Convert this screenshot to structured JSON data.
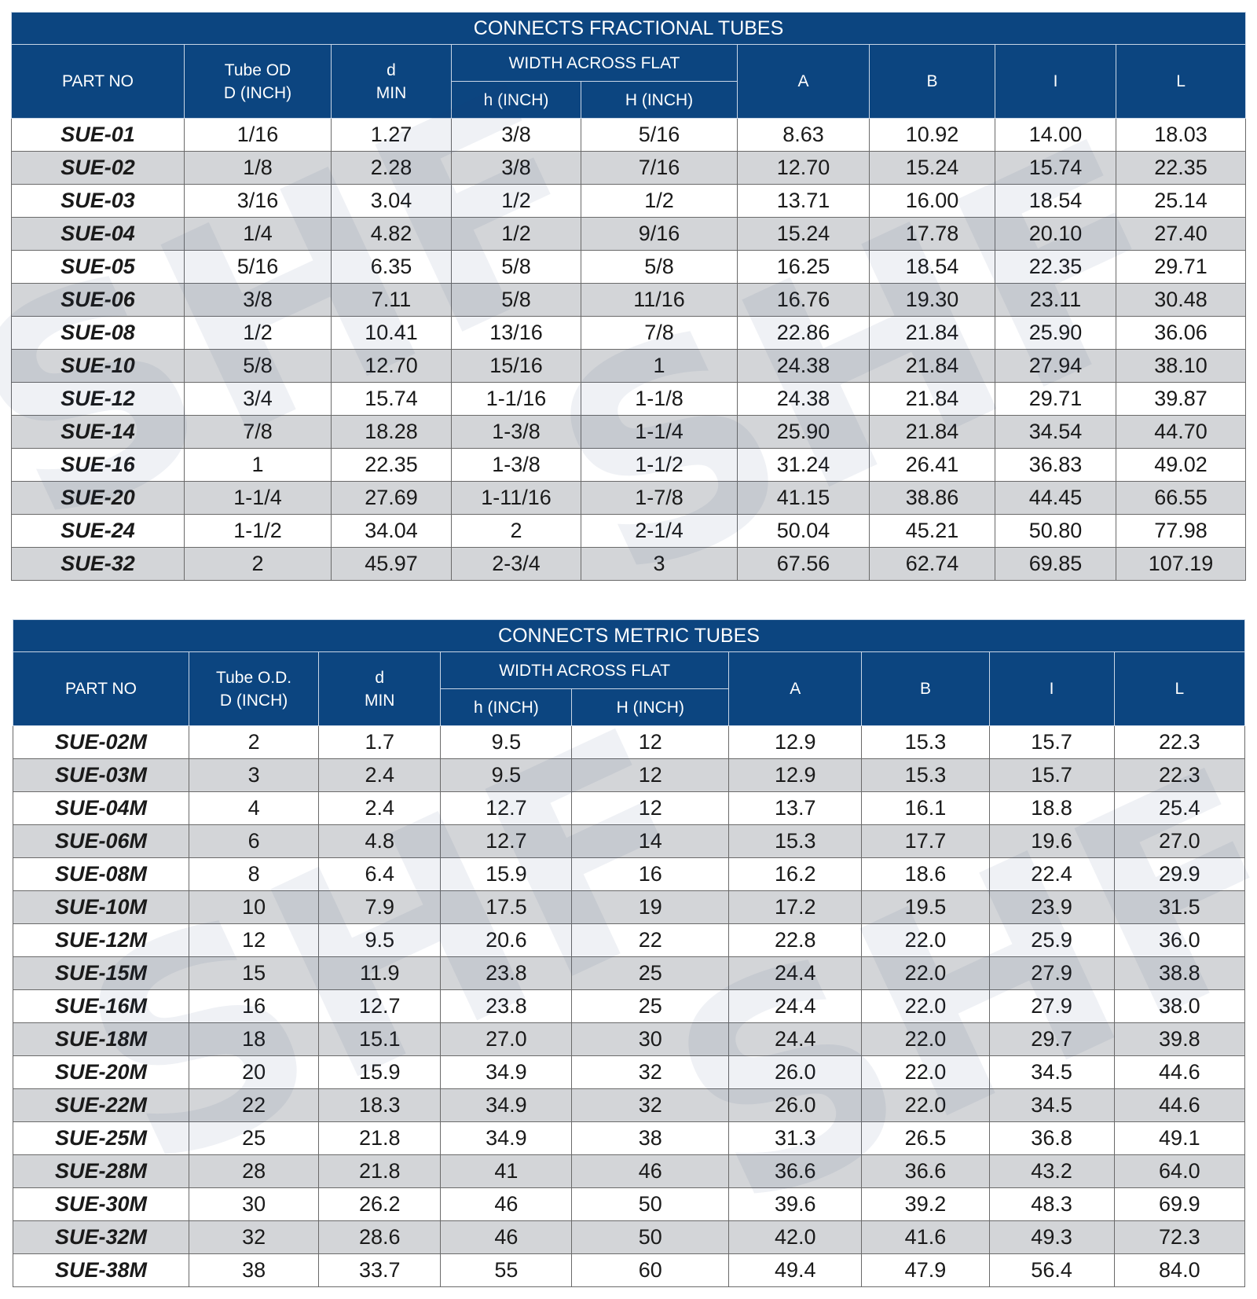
{
  "fractional": {
    "title": "CONNECTS FRACTIONAL TUBES",
    "headers": {
      "part_no": "PART NO",
      "tube_od_1": "Tube OD",
      "tube_od_2": "D (INCH)",
      "d_1": "d",
      "d_2": "MIN",
      "width_across_flat": "WIDTH ACROSS FLAT",
      "h": "h (INCH)",
      "H": "H (INCH)",
      "A": "A",
      "B": "B",
      "I": "I",
      "L": "L"
    },
    "rows": [
      [
        "SUE-01",
        "1/16",
        "1.27",
        "3/8",
        "5/16",
        "8.63",
        "10.92",
        "14.00",
        "18.03"
      ],
      [
        "SUE-02",
        "1/8",
        "2.28",
        "3/8",
        "7/16",
        "12.70",
        "15.24",
        "15.74",
        "22.35"
      ],
      [
        "SUE-03",
        "3/16",
        "3.04",
        "1/2",
        "1/2",
        "13.71",
        "16.00",
        "18.54",
        "25.14"
      ],
      [
        "SUE-04",
        "1/4",
        "4.82",
        "1/2",
        "9/16",
        "15.24",
        "17.78",
        "20.10",
        "27.40"
      ],
      [
        "SUE-05",
        "5/16",
        "6.35",
        "5/8",
        "5/8",
        "16.25",
        "18.54",
        "22.35",
        "29.71"
      ],
      [
        "SUE-06",
        "3/8",
        "7.11",
        "5/8",
        "11/16",
        "16.76",
        "19.30",
        "23.11",
        "30.48"
      ],
      [
        "SUE-08",
        "1/2",
        "10.41",
        "13/16",
        "7/8",
        "22.86",
        "21.84",
        "25.90",
        "36.06"
      ],
      [
        "SUE-10",
        "5/8",
        "12.70",
        "15/16",
        "1",
        "24.38",
        "21.84",
        "27.94",
        "38.10"
      ],
      [
        "SUE-12",
        "3/4",
        "15.74",
        "1-1/16",
        "1-1/8",
        "24.38",
        "21.84",
        "29.71",
        "39.87"
      ],
      [
        "SUE-14",
        "7/8",
        "18.28",
        "1-3/8",
        "1-1/4",
        "25.90",
        "21.84",
        "34.54",
        "44.70"
      ],
      [
        "SUE-16",
        "1",
        "22.35",
        "1-3/8",
        "1-1/2",
        "31.24",
        "26.41",
        "36.83",
        "49.02"
      ],
      [
        "SUE-20",
        "1-1/4",
        "27.69",
        "1-11/16",
        "1-7/8",
        "41.15",
        "38.86",
        "44.45",
        "66.55"
      ],
      [
        "SUE-24",
        "1-1/2",
        "34.04",
        "2",
        "2-1/4",
        "50.04",
        "45.21",
        "50.80",
        "77.98"
      ],
      [
        "SUE-32",
        "2",
        "45.97",
        "2-3/4",
        "3",
        "67.56",
        "62.74",
        "69.85",
        "107.19"
      ]
    ]
  },
  "metric": {
    "title": "CONNECTS METRIC TUBES",
    "headers": {
      "part_no": "PART NO",
      "tube_od_1": "Tube O.D.",
      "tube_od_2": "D (INCH)",
      "d_1": "d",
      "d_2": "MIN",
      "width_across_flat": "WIDTH ACROSS FLAT",
      "h": "h (INCH)",
      "H": "H (INCH)",
      "A": "A",
      "B": "B",
      "I": "I",
      "L": "L"
    },
    "rows": [
      [
        "SUE-02M",
        "2",
        "1.7",
        "9.5",
        "12",
        "12.9",
        "15.3",
        "15.7",
        "22.3"
      ],
      [
        "SUE-03M",
        "3",
        "2.4",
        "9.5",
        "12",
        "12.9",
        "15.3",
        "15.7",
        "22.3"
      ],
      [
        "SUE-04M",
        "4",
        "2.4",
        "12.7",
        "12",
        "13.7",
        "16.1",
        "18.8",
        "25.4"
      ],
      [
        "SUE-06M",
        "6",
        "4.8",
        "12.7",
        "14",
        "15.3",
        "17.7",
        "19.6",
        "27.0"
      ],
      [
        "SUE-08M",
        "8",
        "6.4",
        "15.9",
        "16",
        "16.2",
        "18.6",
        "22.4",
        "29.9"
      ],
      [
        "SUE-10M",
        "10",
        "7.9",
        "17.5",
        "19",
        "17.2",
        "19.5",
        "23.9",
        "31.5"
      ],
      [
        "SUE-12M",
        "12",
        "9.5",
        "20.6",
        "22",
        "22.8",
        "22.0",
        "25.9",
        "36.0"
      ],
      [
        "SUE-15M",
        "15",
        "11.9",
        "23.8",
        "25",
        "24.4",
        "22.0",
        "27.9",
        "38.8"
      ],
      [
        "SUE-16M",
        "16",
        "12.7",
        "23.8",
        "25",
        "24.4",
        "22.0",
        "27.9",
        "38.0"
      ],
      [
        "SUE-18M",
        "18",
        "15.1",
        "27.0",
        "30",
        "24.4",
        "22.0",
        "29.7",
        "39.8"
      ],
      [
        "SUE-20M",
        "20",
        "15.9",
        "34.9",
        "32",
        "26.0",
        "22.0",
        "34.5",
        "44.6"
      ],
      [
        "SUE-22M",
        "22",
        "18.3",
        "34.9",
        "32",
        "26.0",
        "22.0",
        "34.5",
        "44.6"
      ],
      [
        "SUE-25M",
        "25",
        "21.8",
        "34.9",
        "38",
        "31.3",
        "26.5",
        "36.8",
        "49.1"
      ],
      [
        "SUE-28M",
        "28",
        "21.8",
        "41",
        "46",
        "36.6",
        "36.6",
        "43.2",
        "64.0"
      ],
      [
        "SUE-30M",
        "30",
        "26.2",
        "46",
        "50",
        "39.6",
        "39.2",
        "48.3",
        "69.9"
      ],
      [
        "SUE-32M",
        "32",
        "28.6",
        "46",
        "50",
        "42.0",
        "41.6",
        "49.3",
        "72.3"
      ],
      [
        "SUE-38M",
        "38",
        "33.7",
        "55",
        "60",
        "49.4",
        "47.9",
        "56.4",
        "84.0"
      ]
    ]
  },
  "watermark": "SHF",
  "colors": {
    "header_bg": "#0c4580",
    "alt_row": "#d3d5d8",
    "row": "#ffffff"
  }
}
